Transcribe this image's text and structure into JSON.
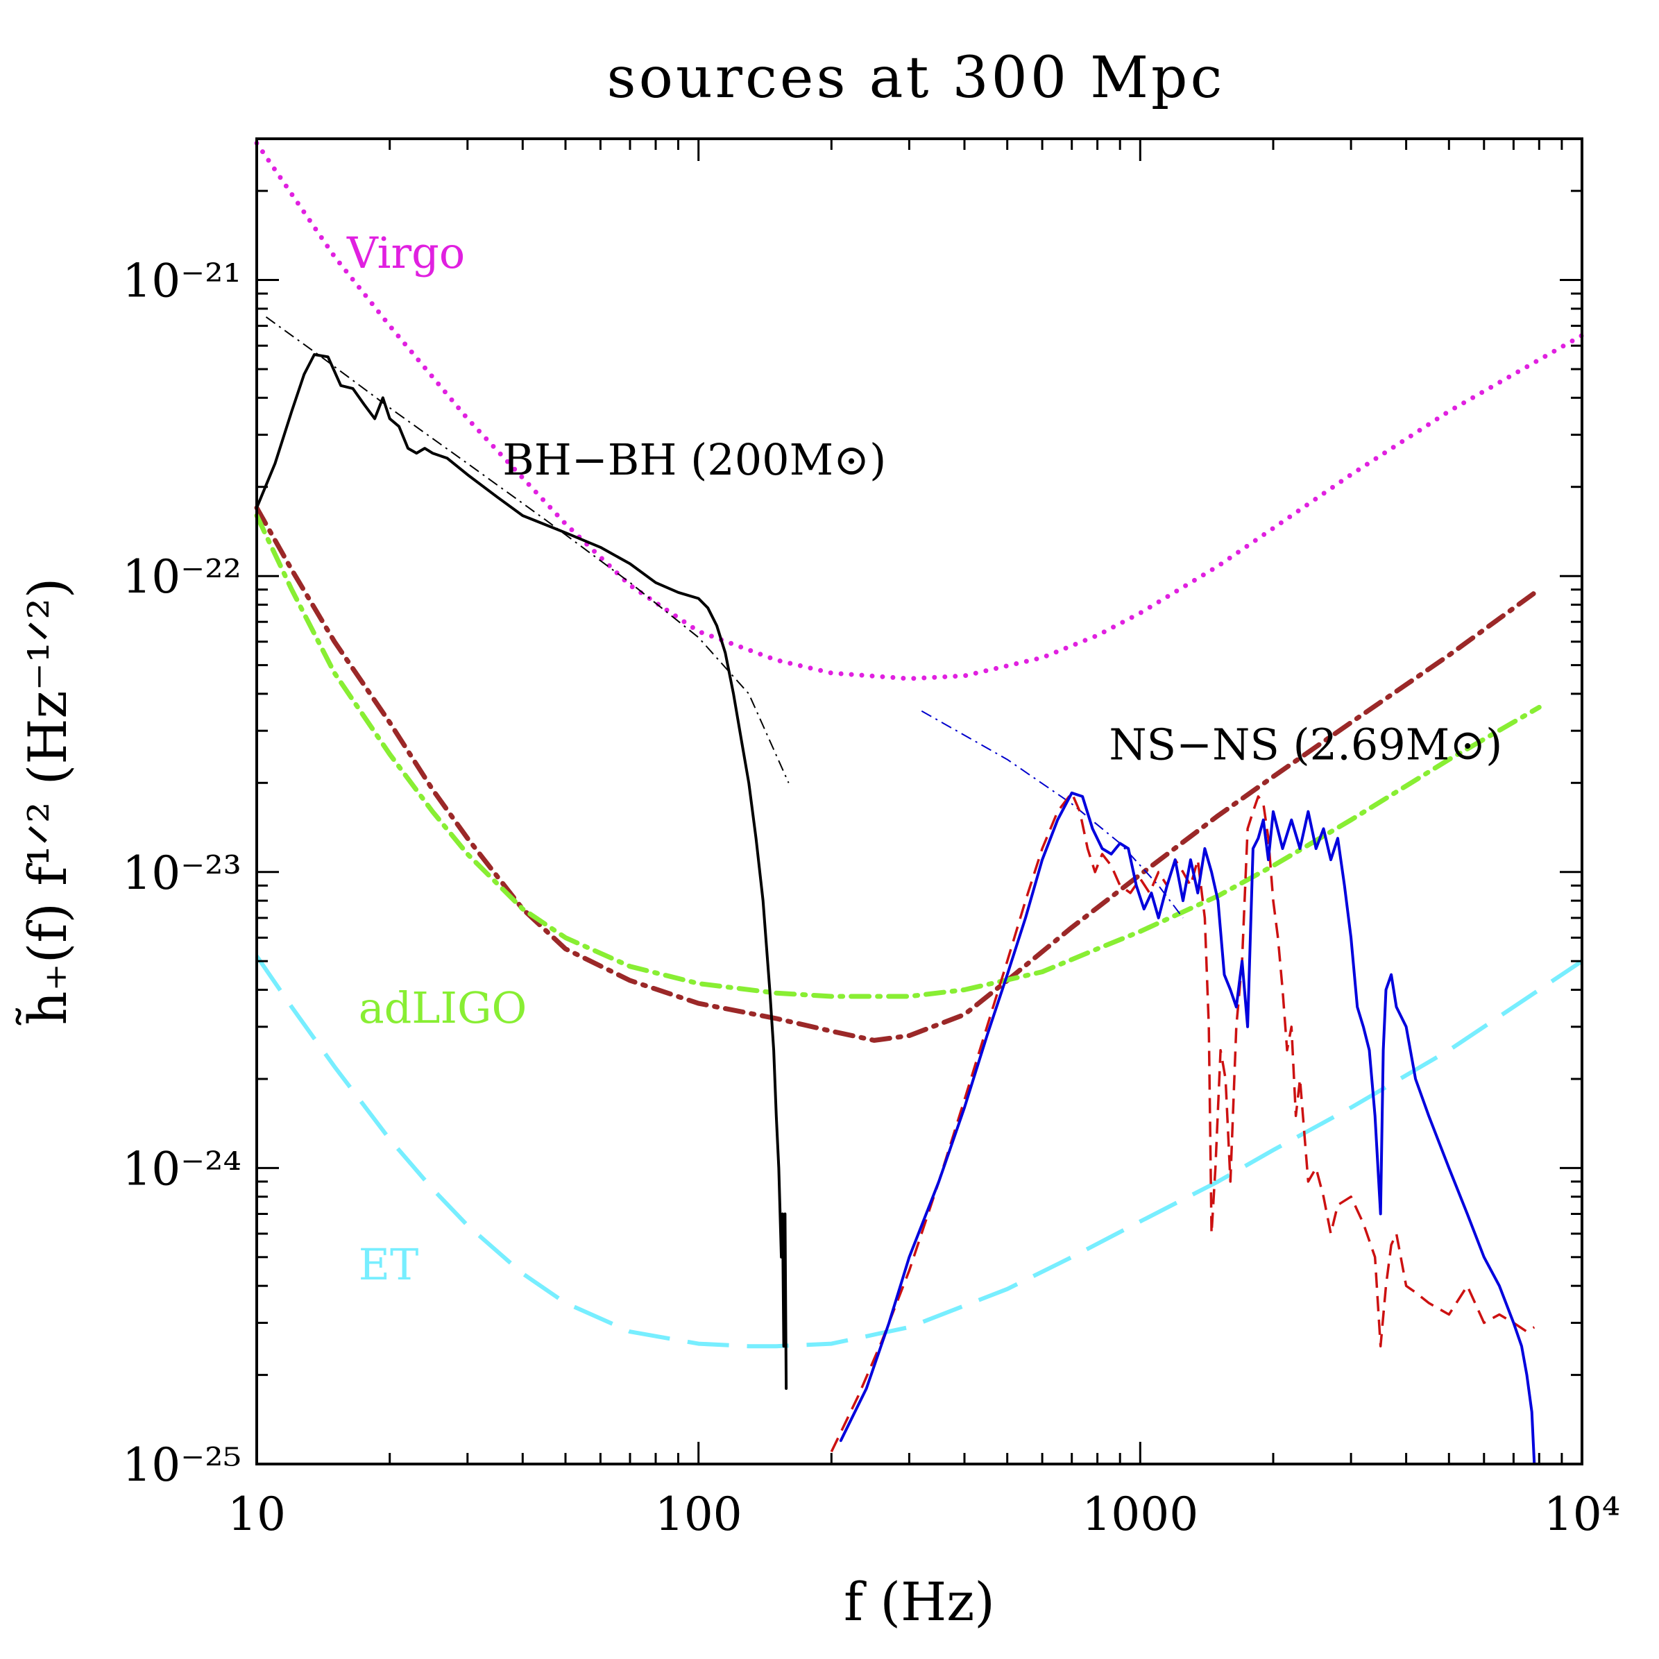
{
  "chart_data": {
    "type": "line",
    "title": "sources at 300 Mpc",
    "xlabel": "f (Hz)",
    "ylabel": "h̃₊(f) f¹ᐟ² (Hz⁻¹ᐟ²)",
    "x_scale": "log",
    "y_scale": "log",
    "xlim": [
      10,
      10000
    ],
    "ylim": [
      1e-25,
      3e-21
    ],
    "grid": false,
    "x_ticks": [
      {
        "value": 10,
        "label": "10"
      },
      {
        "value": 100,
        "label": "100"
      },
      {
        "value": 1000,
        "label": "1000"
      },
      {
        "value": 10000,
        "label": "10⁴"
      }
    ],
    "y_ticks": [
      {
        "value": 1e-25,
        "label": "10⁻²⁵"
      },
      {
        "value": 1e-24,
        "label": "10⁻²⁴"
      },
      {
        "value": 1e-23,
        "label": "10⁻²³"
      },
      {
        "value": 1e-22,
        "label": "10⁻²²"
      },
      {
        "value": 1e-21,
        "label": "10⁻²¹"
      }
    ],
    "annotations": [
      {
        "text": "Virgo",
        "x": 16,
        "y": 1.1e-21,
        "color": "#e020e0"
      },
      {
        "text": "BH−BH (200M⊙)",
        "x": 36,
        "y": 2.2e-22,
        "color": "#000000"
      },
      {
        "text": "NS−NS (2.69M⊙)",
        "x": 850,
        "y": 2.4e-23,
        "color": "#000000"
      },
      {
        "text": "adLIGO",
        "x": 17,
        "y": 3.1e-24,
        "color": "#88ee33"
      },
      {
        "text": "ET",
        "x": 17,
        "y": 4.2e-25,
        "color": "#77eeff"
      }
    ],
    "series": [
      {
        "id": "virgo",
        "color": "#e020e0",
        "style": "dotted",
        "x": [
          10,
          15,
          20,
          30,
          50,
          70,
          100,
          150,
          200,
          300,
          400,
          600,
          800,
          1000,
          1500,
          2000,
          3000,
          5000,
          7000,
          10000
        ],
        "y": [
          2.9e-21,
          1.2e-21,
          7e-22,
          3.4e-22,
          1.5e-22,
          9.3e-23,
          6.5e-23,
          5.2e-23,
          4.7e-23,
          4.5e-23,
          4.6e-23,
          5.3e-23,
          6.3e-23,
          7.5e-23,
          1.08e-22,
          1.45e-22,
          2.2e-22,
          3.6e-22,
          4.8e-22,
          6.5e-22
        ]
      },
      {
        "id": "adligo_dark",
        "color": "#9b2828",
        "style": "dashdot",
        "x": [
          10,
          12,
          15,
          20,
          25,
          30,
          40,
          50,
          70,
          100,
          150,
          200,
          250,
          300,
          400,
          500,
          700,
          1000,
          1500,
          2000,
          3000,
          5000,
          8000
        ],
        "y": [
          1.7e-22,
          1.05e-22,
          6e-23,
          3.2e-23,
          1.9e-23,
          1.3e-23,
          7.5e-24,
          5.5e-24,
          4.3e-24,
          3.6e-24,
          3.2e-24,
          2.9e-24,
          2.7e-24,
          2.8e-24,
          3.3e-24,
          4.3e-24,
          6.5e-24,
          9.8e-24,
          1.55e-23,
          2.1e-23,
          3.2e-23,
          5.4e-23,
          9e-23
        ]
      },
      {
        "id": "adligo",
        "color": "#88ee33",
        "style": "dashdot",
        "x": [
          10,
          12,
          15,
          20,
          25,
          30,
          40,
          50,
          70,
          100,
          150,
          200,
          300,
          400,
          600,
          800,
          1000,
          1500,
          2000,
          3000,
          5000,
          8000
        ],
        "y": [
          1.6e-22,
          9e-23,
          4.7e-23,
          2.5e-23,
          1.6e-23,
          1.15e-23,
          7.5e-24,
          6e-24,
          4.8e-24,
          4.2e-24,
          3.9e-24,
          3.8e-24,
          3.8e-24,
          4e-24,
          4.6e-24,
          5.5e-24,
          6.3e-24,
          8.3e-24,
          1.05e-23,
          1.5e-23,
          2.4e-23,
          3.6e-23
        ]
      },
      {
        "id": "et",
        "color": "#77eeff",
        "style": "longdash",
        "x": [
          10,
          12,
          15,
          20,
          25,
          30,
          40,
          50,
          70,
          100,
          130,
          150,
          200,
          300,
          500,
          700,
          1000,
          1500,
          2000,
          3000,
          5000,
          7000,
          10000
        ],
        "y": [
          5.2e-24,
          3.5e-24,
          2.2e-24,
          1.25e-24,
          8.5e-25,
          6.4e-25,
          4.4e-25,
          3.5e-25,
          2.8e-25,
          2.55e-25,
          2.5e-25,
          2.5e-25,
          2.55e-25,
          2.9e-25,
          3.9e-25,
          5e-25,
          6.6e-25,
          9e-25,
          1.15e-24,
          1.6e-24,
          2.5e-24,
          3.5e-24,
          5e-24
        ]
      },
      {
        "id": "bhbh_fit",
        "color": "#000000",
        "style": "thin-dashdot",
        "x": [
          10.5,
          14,
          20,
          30,
          45,
          70,
          100,
          130,
          160
        ],
        "y": [
          7.5e-22,
          5.5e-22,
          3.7e-22,
          2.4e-22,
          1.55e-22,
          9.5e-23,
          6.2e-23,
          4e-23,
          2e-23
        ]
      },
      {
        "id": "bhbh",
        "color": "#000000",
        "style": "solid",
        "x": [
          10,
          11,
          12,
          12.8,
          13.5,
          14.5,
          15.5,
          16.5,
          17.5,
          18.5,
          19.3,
          20,
          21,
          22,
          23,
          24,
          25,
          27,
          30,
          35,
          40,
          50,
          60,
          70,
          80,
          90,
          100,
          105,
          110,
          115,
          120,
          125,
          130,
          135,
          140,
          145,
          148,
          150,
          152,
          153,
          154,
          155,
          156,
          157,
          158
        ],
        "y": [
          1.7e-22,
          2.4e-22,
          3.6e-22,
          4.8e-22,
          5.6e-22,
          5.5e-22,
          4.4e-22,
          4.3e-22,
          3.8e-22,
          3.4e-22,
          4e-22,
          3.4e-22,
          3.2e-22,
          2.7e-22,
          2.6e-22,
          2.7e-22,
          2.6e-22,
          2.5e-22,
          2.2e-22,
          1.85e-22,
          1.6e-22,
          1.4e-22,
          1.25e-22,
          1.1e-22,
          9.5e-23,
          8.8e-23,
          8.4e-23,
          7.8e-23,
          6.8e-23,
          5.5e-23,
          4e-23,
          2.8e-23,
          2e-23,
          1.3e-23,
          8e-24,
          4e-24,
          2.5e-24,
          1.5e-24,
          1e-24,
          7e-25,
          5e-25,
          7e-25,
          2.5e-25,
          7e-25,
          1.8e-25
        ]
      },
      {
        "id": "nsns_fit",
        "color": "#0000cc",
        "style": "thin-dashdot",
        "x": [
          320,
          500,
          700,
          900,
          1100,
          1250
        ],
        "y": [
          3.5e-23,
          2.4e-23,
          1.7e-23,
          1.25e-23,
          9e-24,
          7e-24
        ]
      },
      {
        "id": "nsns_red",
        "color": "#cc1111",
        "style": "dashed",
        "x": [
          200,
          230,
          260,
          300,
          350,
          400,
          450,
          500,
          550,
          600,
          650,
          700,
          730,
          760,
          790,
          820,
          860,
          900,
          950,
          1000,
          1050,
          1100,
          1150,
          1200,
          1250,
          1300,
          1350,
          1400,
          1430,
          1450,
          1480,
          1520,
          1560,
          1600,
          1650,
          1700,
          1750,
          1800,
          1850,
          1900,
          1950,
          2000,
          2050,
          2100,
          2150,
          2200,
          2250,
          2300,
          2400,
          2500,
          2600,
          2700,
          2800,
          3000,
          3200,
          3400,
          3500,
          3600,
          3700,
          3800,
          4000,
          4200,
          4500,
          5000,
          5500,
          6000,
          6500,
          7000,
          7500,
          7800
        ],
        "y": [
          1.1e-25,
          1.7e-25,
          2.6e-25,
          4.5e-25,
          9e-25,
          1.7e-24,
          3e-24,
          5e-24,
          8e-24,
          1.2e-23,
          1.6e-23,
          1.85e-23,
          1.6e-23,
          1.2e-23,
          1e-23,
          1.15e-23,
          1.05e-23,
          9e-24,
          8.5e-24,
          9.5e-24,
          8.5e-24,
          1e-23,
          9e-24,
          1.1e-23,
          1e-23,
          9e-24,
          1.1e-23,
          7e-24,
          3e-24,
          6e-25,
          1e-24,
          2.5e-24,
          2e-24,
          9e-25,
          3e-24,
          5e-24,
          1.4e-23,
          1.6e-23,
          1.8e-23,
          1.7e-23,
          1.3e-23,
          8e-24,
          6e-24,
          4e-24,
          2.5e-24,
          3e-24,
          1.5e-24,
          2e-24,
          9e-25,
          1e-24,
          8e-25,
          6e-25,
          7.5e-25,
          8e-25,
          6.5e-25,
          5e-25,
          2.5e-25,
          4e-25,
          5.5e-25,
          6e-25,
          4e-25,
          3.8e-25,
          3.5e-25,
          3.2e-25,
          4e-25,
          3e-25,
          3.2e-25,
          3e-25,
          2.8e-25,
          2.9e-25
        ]
      },
      {
        "id": "nsns_blue",
        "color": "#0000dd",
        "style": "solid",
        "x": [
          210,
          240,
          270,
          300,
          350,
          400,
          450,
          500,
          550,
          600,
          650,
          700,
          740,
          780,
          820,
          860,
          900,
          940,
          980,
          1020,
          1060,
          1100,
          1150,
          1200,
          1250,
          1300,
          1350,
          1400,
          1450,
          1500,
          1550,
          1600,
          1650,
          1700,
          1750,
          1800,
          1850,
          1900,
          1950,
          2000,
          2100,
          2200,
          2300,
          2400,
          2500,
          2600,
          2700,
          2800,
          2900,
          3000,
          3100,
          3200,
          3300,
          3400,
          3500,
          3550,
          3600,
          3700,
          3800,
          4000,
          4200,
          4500,
          5000,
          5500,
          6000,
          6500,
          7000,
          7300,
          7500,
          7700,
          7800
        ],
        "y": [
          1.2e-25,
          1.8e-25,
          3e-25,
          5e-25,
          9e-25,
          1.6e-24,
          2.8e-24,
          4.5e-24,
          7e-24,
          1.1e-23,
          1.5e-23,
          1.85e-23,
          1.8e-23,
          1.4e-23,
          1.2e-23,
          1.15e-23,
          1.25e-23,
          1.2e-23,
          9e-24,
          7.5e-24,
          8.5e-24,
          7e-24,
          9e-24,
          1.1e-23,
          8e-24,
          1.1e-23,
          8.5e-24,
          1.2e-23,
          1e-23,
          8e-24,
          4.5e-24,
          4e-24,
          3.5e-24,
          5e-24,
          3e-24,
          1.2e-23,
          1.3e-23,
          1.5e-23,
          1.1e-23,
          1.6e-23,
          1.2e-23,
          1.5e-23,
          1.2e-23,
          1.6e-23,
          1.2e-23,
          1.4e-23,
          1.1e-23,
          1.3e-23,
          9e-24,
          6e-24,
          3.5e-24,
          3e-24,
          2.5e-24,
          1.5e-24,
          7e-25,
          2.5e-24,
          4e-24,
          4.5e-24,
          3.5e-24,
          3e-24,
          2e-24,
          1.5e-24,
          1e-24,
          7e-25,
          5e-25,
          4e-25,
          3e-25,
          2.5e-25,
          2e-25,
          1.5e-25,
          1e-25
        ]
      }
    ]
  }
}
